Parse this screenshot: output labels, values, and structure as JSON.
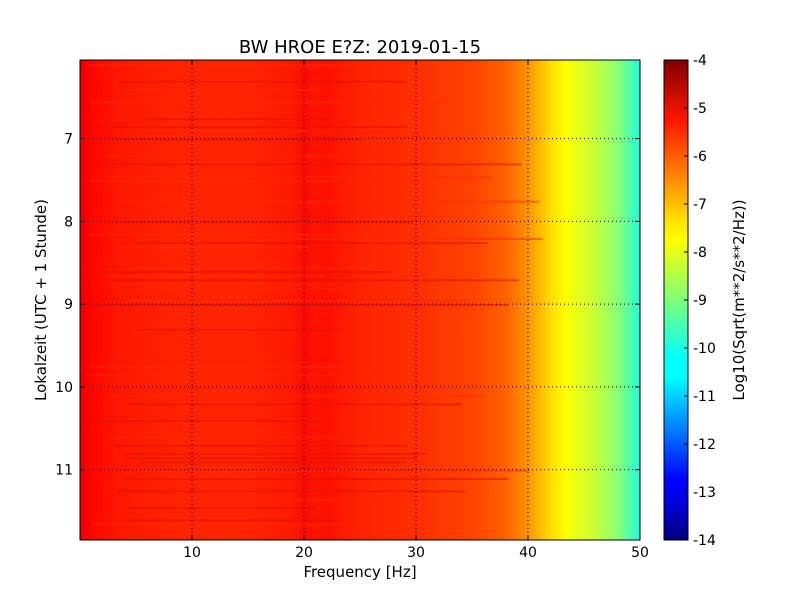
{
  "chart_data": {
    "type": "heatmap",
    "title": "BW HROE E?Z: 2019-01-15",
    "xlabel": "Frequency [Hz]",
    "ylabel": "Lokalzeit (UTC + 1 Stunde)",
    "xlim": [
      0,
      50
    ],
    "ylim": [
      11.85,
      6.05
    ],
    "x_ticks": [
      "10",
      "20",
      "30",
      "40",
      "50"
    ],
    "x_tick_values": [
      10,
      20,
      30,
      40,
      50
    ],
    "y_ticks": [
      "7",
      "8",
      "9",
      "10",
      "11"
    ],
    "y_tick_values": [
      7,
      8,
      9,
      10,
      11
    ],
    "grid": true,
    "colormap": "jet",
    "colorbar": {
      "label": "Log10(Sqrt(m**2/s**2/Hz))",
      "range": [
        -14,
        -4
      ],
      "ticks": [
        "-4",
        "-5",
        "-6",
        "-7",
        "-8",
        "-9",
        "-10",
        "-11",
        "-12",
        "-13",
        "-14"
      ],
      "tick_values": [
        -4,
        -5,
        -6,
        -7,
        -8,
        -9,
        -10,
        -11,
        -12,
        -13,
        -14
      ]
    },
    "spectrum_profile": {
      "frequency_hz": [
        0,
        1,
        3,
        6,
        10,
        15,
        19,
        20,
        21,
        22,
        25,
        30,
        35,
        38,
        40,
        42,
        44,
        46,
        48,
        50
      ],
      "log10_amplitude": [
        -5.0,
        -5.3,
        -5.45,
        -5.55,
        -5.6,
        -5.6,
        -5.5,
        -5.35,
        -5.45,
        -5.4,
        -5.6,
        -5.7,
        -5.9,
        -6.2,
        -6.7,
        -7.4,
        -7.9,
        -8.3,
        -8.9,
        -9.9
      ]
    }
  }
}
